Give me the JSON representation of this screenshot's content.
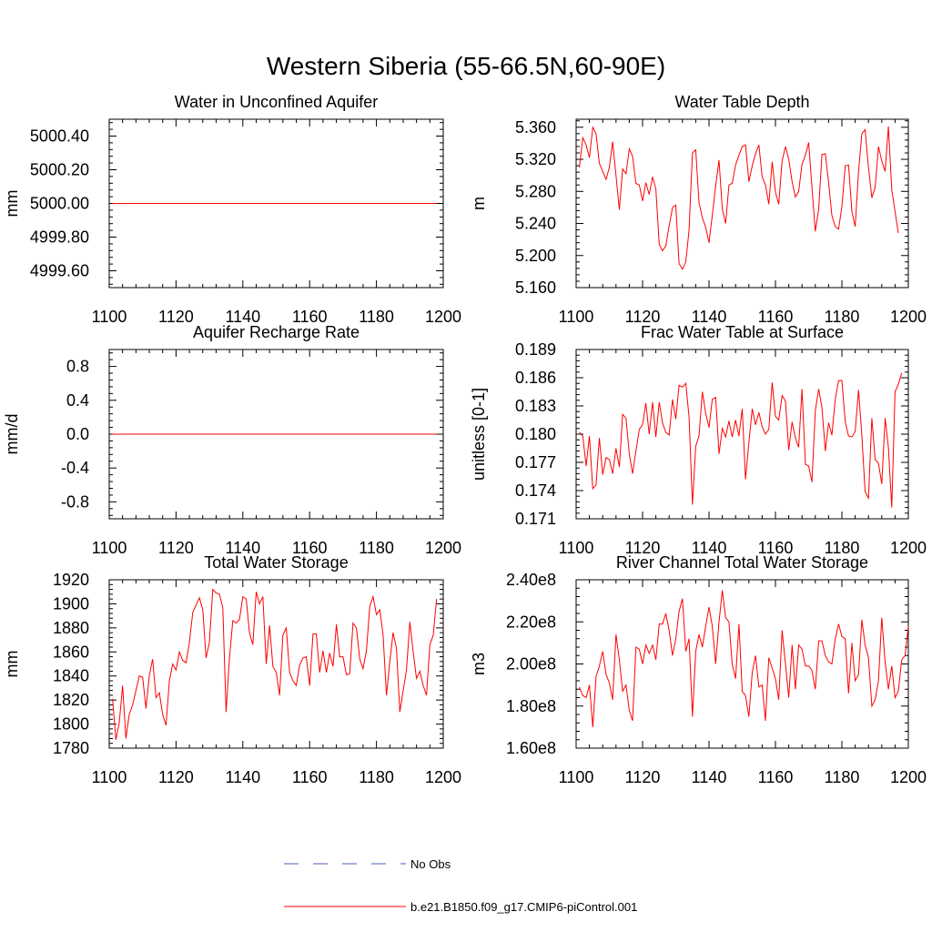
{
  "figure_title": "Western Siberia (55-66.5N,60-90E)",
  "colors": {
    "model_line": "#ff0000",
    "obs_line": "#4a5fb5",
    "axis": "#000000"
  },
  "legend": [
    {
      "label": "No Obs",
      "style": "dashed",
      "color": "#4a5fb5"
    },
    {
      "label": "b.e21.B1850.f09_g17.CMIP6-piControl.001",
      "style": "solid",
      "color": "#ff0000"
    }
  ],
  "chart_data": [
    {
      "type": "line",
      "title": "Water in Unconfined Aquifer",
      "ylabel": "mm",
      "xlim": [
        1100,
        1200
      ],
      "xticks": [
        1100,
        1120,
        1140,
        1160,
        1180,
        1200
      ],
      "ylim": [
        4999.5,
        5000.5
      ],
      "yticks": [
        4999.6,
        4999.8,
        5000.0,
        5000.2,
        5000.4
      ],
      "ytick_labels": [
        "4999.60",
        "4999.80",
        "5000.00",
        "5000.20",
        "5000.40"
      ],
      "x_start": 1101,
      "series": [
        {
          "name": "b.e21.B1850.f09_g17.CMIP6-piControl.001",
          "values": [
            5000,
            5000,
            5000,
            5000,
            5000,
            5000,
            5000,
            5000,
            5000,
            5000,
            5000,
            5000,
            5000,
            5000,
            5000,
            5000,
            5000,
            5000,
            5000,
            5000,
            5000,
            5000,
            5000,
            5000,
            5000,
            5000,
            5000,
            5000,
            5000,
            5000,
            5000,
            5000,
            5000,
            5000,
            5000,
            5000,
            5000,
            5000,
            5000,
            5000,
            5000,
            5000,
            5000,
            5000,
            5000,
            5000,
            5000,
            5000,
            5000,
            5000,
            5000,
            5000,
            5000,
            5000,
            5000,
            5000,
            5000,
            5000,
            5000,
            5000,
            5000,
            5000,
            5000,
            5000,
            5000,
            5000,
            5000,
            5000,
            5000,
            5000,
            5000,
            5000,
            5000,
            5000,
            5000,
            5000,
            5000,
            5000,
            5000,
            5000,
            5000,
            5000,
            5000,
            5000,
            5000,
            5000,
            5000,
            5000,
            5000,
            5000,
            5000,
            5000,
            5000,
            5000,
            5000,
            5000,
            5000,
            5000
          ]
        }
      ]
    },
    {
      "type": "line",
      "title": "Water Table Depth",
      "ylabel": "m",
      "xlim": [
        1100,
        1200
      ],
      "xticks": [
        1100,
        1120,
        1140,
        1160,
        1180,
        1200
      ],
      "ylim": [
        5.16,
        5.37
      ],
      "yticks": [
        5.16,
        5.2,
        5.24,
        5.28,
        5.32,
        5.36
      ],
      "ytick_labels": [
        "5.160",
        "5.200",
        "5.240",
        "5.280",
        "5.320",
        "5.360"
      ],
      "x_start": 1101,
      "series": [
        {
          "name": "b.e21.B1850.f09_g17.CMIP6-piControl.001",
          "values": [
            5.31,
            5.347,
            5.338,
            5.322,
            5.36,
            5.352,
            5.315,
            5.305,
            5.295,
            5.31,
            5.342,
            5.3,
            5.257,
            5.308,
            5.302,
            5.333,
            5.324,
            5.29,
            5.288,
            5.268,
            5.291,
            5.276,
            5.298,
            5.283,
            5.214,
            5.206,
            5.212,
            5.237,
            5.26,
            5.263,
            5.19,
            5.183,
            5.192,
            5.232,
            5.328,
            5.332,
            5.266,
            5.247,
            5.235,
            5.216,
            5.25,
            5.287,
            5.319,
            5.258,
            5.24,
            5.288,
            5.29,
            5.313,
            5.325,
            5.336,
            5.338,
            5.292,
            5.312,
            5.327,
            5.338,
            5.298,
            5.288,
            5.264,
            5.317,
            5.279,
            5.264,
            5.318,
            5.336,
            5.32,
            5.292,
            5.273,
            5.28,
            5.314,
            5.325,
            5.341,
            5.285,
            5.23,
            5.258,
            5.326,
            5.327,
            5.291,
            5.25,
            5.236,
            5.233,
            5.261,
            5.312,
            5.313,
            5.255,
            5.236,
            5.305,
            5.352,
            5.357,
            5.31,
            5.272,
            5.285,
            5.336,
            5.318,
            5.305,
            5.361,
            5.282,
            5.255,
            5.228
          ]
        }
      ]
    },
    {
      "type": "line",
      "title": "Aquifer Recharge Rate",
      "ylabel": "mm/d",
      "xlim": [
        1100,
        1200
      ],
      "xticks": [
        1100,
        1120,
        1140,
        1160,
        1180,
        1200
      ],
      "ylim": [
        -1.0,
        1.0
      ],
      "yticks": [
        -0.8,
        -0.4,
        0.0,
        0.4,
        0.8
      ],
      "ytick_labels": [
        "-0.8",
        "-0.4",
        "0.0",
        "0.4",
        "0.8"
      ],
      "x_start": 1101,
      "series": [
        {
          "name": "b.e21.B1850.f09_g17.CMIP6-piControl.001",
          "values": [
            0,
            0,
            0,
            0,
            0,
            0,
            0,
            0,
            0,
            0,
            0,
            0,
            0,
            0,
            0,
            0,
            0,
            0,
            0,
            0,
            0,
            0,
            0,
            0,
            0,
            0,
            0,
            0,
            0,
            0,
            0,
            0,
            0,
            0,
            0,
            0,
            0,
            0,
            0,
            0,
            0,
            0,
            0,
            0,
            0,
            0,
            0,
            0,
            0,
            0,
            0,
            0,
            0,
            0,
            0,
            0,
            0,
            0,
            0,
            0,
            0,
            0,
            0,
            0,
            0,
            0,
            0,
            0,
            0,
            0,
            0,
            0,
            0,
            0,
            0,
            0,
            0,
            0,
            0,
            0,
            0,
            0,
            0,
            0,
            0,
            0,
            0,
            0,
            0,
            0,
            0,
            0,
            0,
            0,
            0,
            0,
            0,
            0
          ]
        }
      ]
    },
    {
      "type": "line",
      "title": "Frac Water Table at Surface",
      "ylabel": "unitless [0-1]",
      "xlim": [
        1100,
        1200
      ],
      "xticks": [
        1100,
        1120,
        1140,
        1160,
        1180,
        1200
      ],
      "ylim": [
        0.171,
        0.189
      ],
      "yticks": [
        0.171,
        0.174,
        0.177,
        0.18,
        0.183,
        0.186,
        0.189
      ],
      "ytick_labels": [
        "0.171",
        "0.174",
        "0.177",
        "0.180",
        "0.183",
        "0.186",
        "0.189"
      ],
      "x_start": 1101,
      "series": [
        {
          "name": "b.e21.B1850.f09_g17.CMIP6-piControl.001",
          "values": [
            0.1802,
            0.1798,
            0.1766,
            0.1798,
            0.1742,
            0.1746,
            0.1796,
            0.1757,
            0.1775,
            0.1773,
            0.1758,
            0.1785,
            0.1765,
            0.1821,
            0.1817,
            0.1779,
            0.1758,
            0.1782,
            0.1805,
            0.181,
            0.1833,
            0.18,
            0.1834,
            0.1797,
            0.1834,
            0.1812,
            0.1802,
            0.1799,
            0.1837,
            0.1816,
            0.1852,
            0.185,
            0.1854,
            0.1818,
            0.1725,
            0.1787,
            0.1798,
            0.1845,
            0.1822,
            0.1807,
            0.1837,
            0.1839,
            0.1779,
            0.1806,
            0.1797,
            0.1814,
            0.1797,
            0.1815,
            0.1798,
            0.1827,
            0.1752,
            0.1791,
            0.1827,
            0.181,
            0.1823,
            0.1808,
            0.18,
            0.1805,
            0.1855,
            0.1819,
            0.1815,
            0.1841,
            0.1835,
            0.1783,
            0.1813,
            0.1796,
            0.1786,
            0.1848,
            0.1768,
            0.1766,
            0.1749,
            0.1825,
            0.1848,
            0.1828,
            0.1782,
            0.1812,
            0.1799,
            0.1837,
            0.1857,
            0.1857,
            0.1813,
            0.1798,
            0.1797,
            0.1803,
            0.1847,
            0.1799,
            0.1739,
            0.1732,
            0.1817,
            0.1773,
            0.1769,
            0.1747,
            0.1817,
            0.1786,
            0.1722,
            0.1845,
            0.1853,
            0.1865
          ]
        }
      ]
    },
    {
      "type": "line",
      "title": "Total Water Storage",
      "ylabel": "mm",
      "xlim": [
        1100,
        1200
      ],
      "xticks": [
        1100,
        1120,
        1140,
        1160,
        1180,
        1200
      ],
      "ylim": [
        1780,
        1920
      ],
      "yticks": [
        1780,
        1800,
        1820,
        1840,
        1860,
        1880,
        1900,
        1920
      ],
      "ytick_labels": [
        "1780",
        "1800",
        "1820",
        "1840",
        "1860",
        "1880",
        "1900",
        "1920"
      ],
      "x_start": 1101,
      "series": [
        {
          "name": "b.e21.B1850.f09_g17.CMIP6-piControl.001",
          "values": [
            1821,
            1787,
            1801,
            1832,
            1788,
            1808,
            1816,
            1828,
            1840,
            1839,
            1813,
            1840,
            1854,
            1822,
            1826,
            1808,
            1799,
            1836,
            1850,
            1845,
            1860,
            1853,
            1851,
            1868,
            1893,
            1899,
            1905,
            1895,
            1855,
            1868,
            1912,
            1909,
            1908,
            1897,
            1810,
            1855,
            1886,
            1884,
            1887,
            1906,
            1904,
            1876,
            1866,
            1910,
            1900,
            1906,
            1850,
            1882,
            1848,
            1843,
            1824,
            1874,
            1880,
            1843,
            1836,
            1832,
            1849,
            1855,
            1856,
            1832,
            1875,
            1875,
            1843,
            1861,
            1843,
            1859,
            1848,
            1883,
            1856,
            1856,
            1841,
            1842,
            1884,
            1880,
            1854,
            1846,
            1861,
            1898,
            1906,
            1891,
            1895,
            1874,
            1824,
            1852,
            1876,
            1863,
            1810,
            1828,
            1845,
            1885,
            1860,
            1838,
            1844,
            1832,
            1824,
            1866,
            1874,
            1904
          ]
        }
      ]
    },
    {
      "type": "line",
      "title": "River Channel Total Water Storage",
      "ylabel": "m3",
      "xlim": [
        1100,
        1200
      ],
      "xticks": [
        1100,
        1120,
        1140,
        1160,
        1180,
        1200
      ],
      "ylim": [
        160000000,
        240000000
      ],
      "yticks": [
        160000000,
        180000000,
        200000000,
        220000000,
        240000000
      ],
      "ytick_labels": [
        "1.60e8",
        "1.80e8",
        "2.00e8",
        "2.20e8",
        "2.40e8"
      ],
      "x_start": 1101,
      "series": [
        {
          "name": "b.e21.B1850.f09_g17.CMIP6-piControl.001",
          "values": [
            189000000,
            185000000,
            184000000,
            190000000,
            170000000,
            194000000,
            199000000,
            206000000,
            195000000,
            191000000,
            183000000,
            214000000,
            202000000,
            187000000,
            190000000,
            178000000,
            173000000,
            208000000,
            207000000,
            200000000,
            209000000,
            205000000,
            209000000,
            202000000,
            219000000,
            219000000,
            224000000,
            216000000,
            204000000,
            212000000,
            225000000,
            231000000,
            206000000,
            212000000,
            175000000,
            206000000,
            214000000,
            208000000,
            218000000,
            227000000,
            218000000,
            200000000,
            220000000,
            235000000,
            222000000,
            220000000,
            200000000,
            193000000,
            219000000,
            187000000,
            185000000,
            175000000,
            196000000,
            204000000,
            189000000,
            190000000,
            173000000,
            203000000,
            198000000,
            193000000,
            183000000,
            216000000,
            200000000,
            184000000,
            209000000,
            188000000,
            209000000,
            207000000,
            199000000,
            199000000,
            197000000,
            188000000,
            211000000,
            211000000,
            204000000,
            201000000,
            200000000,
            212000000,
            219000000,
            213000000,
            212000000,
            186000000,
            210000000,
            192000000,
            195000000,
            221000000,
            209000000,
            203000000,
            180000000,
            183000000,
            192000000,
            222000000,
            201000000,
            188000000,
            199000000,
            184000000,
            187000000,
            202000000,
            204000000,
            218000000
          ]
        }
      ]
    }
  ]
}
